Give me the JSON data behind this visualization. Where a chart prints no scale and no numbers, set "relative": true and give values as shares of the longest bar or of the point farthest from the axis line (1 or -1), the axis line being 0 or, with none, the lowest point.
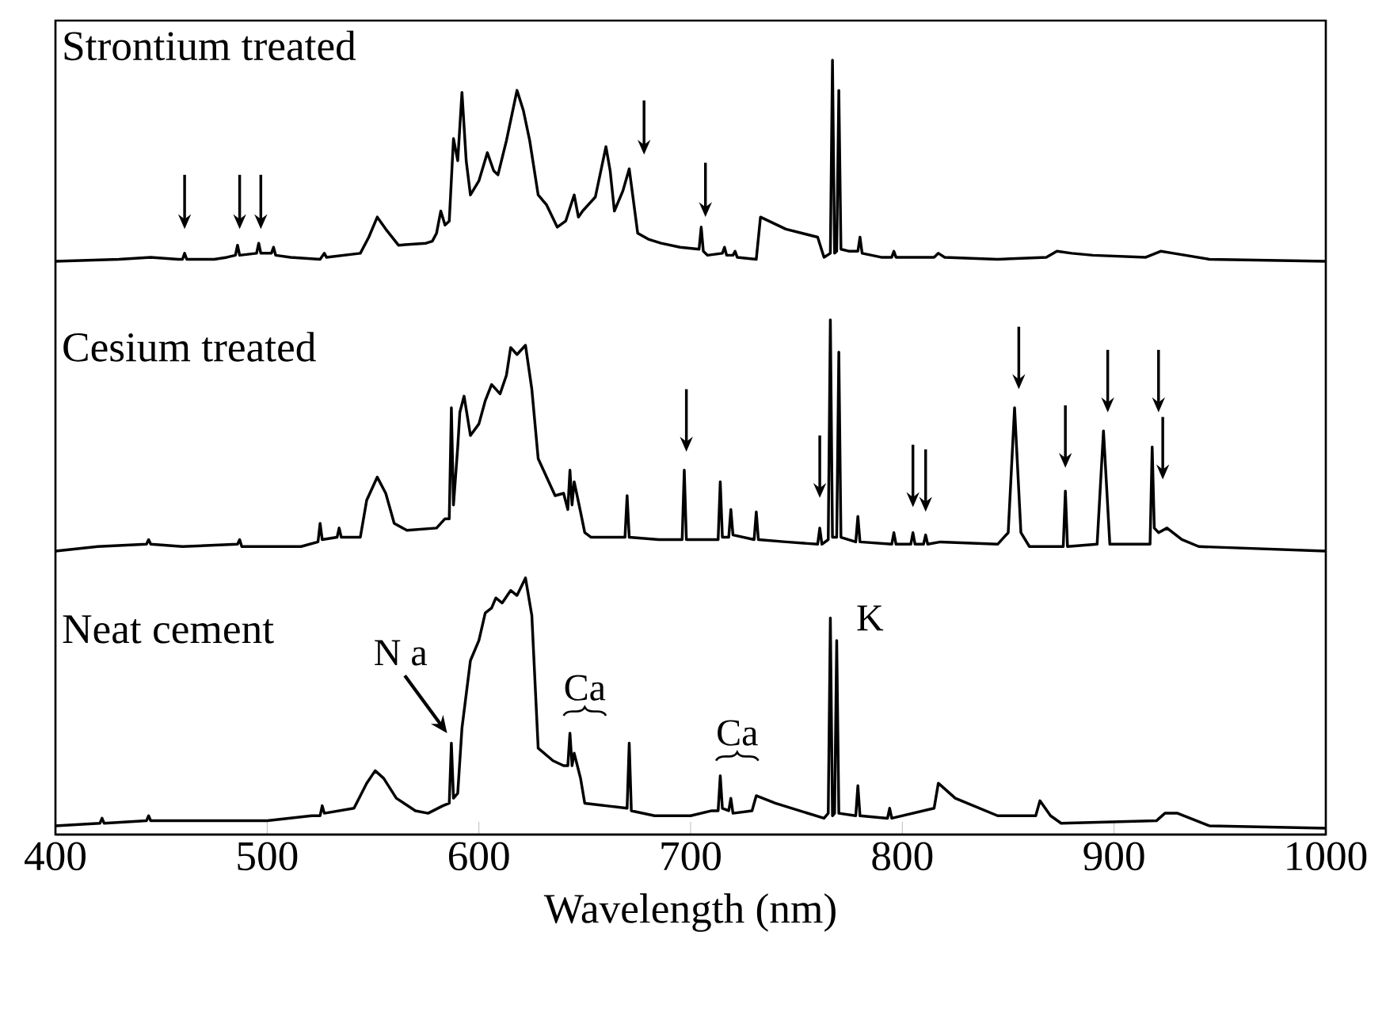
{
  "chart_data": [
    {
      "type": "line",
      "title": "Strontium treated",
      "relative": true,
      "xlim": [
        400,
        1000
      ],
      "xticks": [
        400,
        500,
        600,
        700,
        800,
        900,
        1000
      ],
      "tick_labels": false,
      "series": [
        {
          "color": "#000000",
          "x": [
            400,
            430,
            445,
            458,
            460,
            461,
            462,
            475,
            481,
            485,
            486,
            487,
            495,
            496,
            497,
            502,
            503,
            504,
            511,
            525,
            527,
            528,
            544,
            548,
            552,
            556,
            562,
            575,
            578,
            580,
            582,
            584,
            586,
            588,
            590,
            592,
            594,
            596,
            600,
            604,
            607,
            609,
            613,
            618,
            621,
            624,
            628,
            632,
            637,
            641,
            645,
            647,
            649,
            655,
            660,
            662,
            664,
            668,
            671,
            673,
            675,
            680,
            686,
            695,
            704,
            705,
            706,
            708,
            715,
            716,
            717,
            720,
            721,
            722,
            731,
            733,
            745,
            760,
            763,
            766,
            767,
            768,
            769,
            770,
            771,
            775,
            779,
            780,
            781,
            790,
            795,
            796,
            797,
            815,
            817,
            820,
            845,
            868,
            873,
            880,
            890,
            915,
            922,
            928,
            945,
            1000
          ],
          "values": [
            0,
            0.01,
            0.02,
            0.01,
            0.01,
            0.04,
            0.01,
            0.01,
            0.02,
            0.03,
            0.08,
            0.03,
            0.04,
            0.09,
            0.04,
            0.04,
            0.07,
            0.03,
            0.02,
            0.01,
            0.04,
            0.02,
            0.04,
            0.12,
            0.22,
            0.16,
            0.08,
            0.09,
            0.1,
            0.14,
            0.25,
            0.18,
            0.2,
            0.61,
            0.5,
            0.84,
            0.5,
            0.33,
            0.4,
            0.54,
            0.45,
            0.43,
            0.6,
            0.85,
            0.75,
            0.6,
            0.33,
            0.28,
            0.17,
            0.2,
            0.33,
            0.22,
            0.25,
            0.32,
            0.57,
            0.45,
            0.25,
            0.35,
            0.46,
            0.3,
            0.14,
            0.11,
            0.09,
            0.07,
            0.06,
            0.17,
            0.05,
            0.03,
            0.04,
            0.07,
            0.03,
            0.03,
            0.05,
            0.02,
            0.01,
            0.22,
            0.16,
            0.12,
            0.02,
            0.04,
            1.0,
            0.04,
            0.05,
            0.85,
            0.06,
            0.05,
            0.05,
            0.12,
            0.04,
            0.02,
            0.02,
            0.05,
            0.02,
            0.02,
            0.04,
            0.02,
            0.01,
            0.02,
            0.05,
            0.04,
            0.03,
            0.02,
            0.05,
            0.04,
            0.01,
            0
          ]
        }
      ]
    },
    {
      "type": "line",
      "title": "Cesium treated",
      "relative": true,
      "xlim": [
        400,
        1000
      ],
      "xticks": [
        400,
        500,
        600,
        700,
        800,
        900,
        1000
      ],
      "tick_labels": false,
      "series": [
        {
          "color": "#000000",
          "x": [
            400,
            420,
            443,
            444,
            445,
            460,
            486,
            487,
            488,
            516,
            524,
            525,
            526,
            533,
            534,
            535,
            544,
            547,
            552,
            556,
            560,
            566,
            580,
            584,
            586,
            587,
            588,
            590,
            591,
            593,
            596,
            600,
            603,
            606,
            610,
            613,
            615,
            618,
            622,
            625,
            628,
            632,
            636,
            640,
            642,
            643,
            644,
            645,
            648,
            650,
            653,
            669,
            670,
            671,
            685,
            696,
            697,
            698,
            713,
            714,
            715,
            718,
            719,
            720,
            730,
            731,
            732,
            745,
            760,
            761,
            762,
            765,
            766,
            767,
            769,
            770,
            771,
            778,
            779,
            780,
            795,
            796,
            797,
            804,
            805,
            806,
            810,
            811,
            812,
            818,
            845,
            850,
            853,
            856,
            860,
            876,
            877,
            878,
            892,
            895,
            898,
            917,
            918,
            919,
            921,
            925,
            932,
            940,
            1000
          ],
          "values": [
            0,
            0.02,
            0.03,
            0.05,
            0.03,
            0.02,
            0.03,
            0.05,
            0.02,
            0.02,
            0.04,
            0.12,
            0.05,
            0.06,
            0.1,
            0.06,
            0.06,
            0.22,
            0.32,
            0.25,
            0.12,
            0.09,
            0.1,
            0.14,
            0.14,
            0.62,
            0.2,
            0.45,
            0.6,
            0.67,
            0.5,
            0.55,
            0.65,
            0.72,
            0.68,
            0.76,
            0.88,
            0.85,
            0.89,
            0.7,
            0.4,
            0.32,
            0.24,
            0.25,
            0.18,
            0.35,
            0.2,
            0.3,
            0.17,
            0.08,
            0.06,
            0.06,
            0.24,
            0.06,
            0.05,
            0.05,
            0.35,
            0.05,
            0.05,
            0.3,
            0.06,
            0.06,
            0.18,
            0.07,
            0.05,
            0.17,
            0.05,
            0.04,
            0.03,
            0.1,
            0.03,
            0.05,
            1.0,
            0.06,
            0.06,
            0.86,
            0.06,
            0.04,
            0.15,
            0.04,
            0.03,
            0.08,
            0.03,
            0.03,
            0.08,
            0.03,
            0.03,
            0.07,
            0.03,
            0.04,
            0.03,
            0.08,
            0.62,
            0.08,
            0.02,
            0.02,
            0.26,
            0.02,
            0.03,
            0.52,
            0.03,
            0.03,
            0.45,
            0.1,
            0.08,
            0.1,
            0.05,
            0.02,
            0
          ]
        }
      ]
    },
    {
      "type": "line",
      "title": "Neat cement",
      "xlabel": "Wavelength (nm)",
      "relative": true,
      "xlim": [
        400,
        1000
      ],
      "xticks": [
        400,
        500,
        600,
        700,
        800,
        900,
        1000
      ],
      "tick_labels": "x",
      "annotations": [
        {
          "text": "N a",
          "x": 587,
          "y": 0.34
        },
        {
          "text": "Ca",
          "x": 643,
          "y": 0.38
        },
        {
          "text": "Ca",
          "x": 714,
          "y": 0.21
        },
        {
          "text": "K",
          "x": 767,
          "y": 0.84
        }
      ],
      "series": [
        {
          "color": "#000000",
          "x": [
            400,
            421,
            422,
            423,
            443,
            444,
            445,
            471,
            500,
            521,
            525,
            526,
            527,
            541,
            547,
            551,
            555,
            561,
            570,
            576,
            583,
            586,
            587,
            588,
            590,
            592,
            596,
            600,
            603,
            606,
            608,
            611,
            615,
            618,
            622,
            625,
            628,
            635,
            640,
            642,
            643,
            644,
            645,
            648,
            650,
            660,
            670,
            671,
            672,
            683,
            700,
            710,
            713,
            714,
            715,
            718,
            719,
            720,
            729,
            731,
            740,
            763,
            765,
            766,
            767,
            768,
            769,
            770,
            778,
            779,
            780,
            793,
            794,
            795,
            815,
            817,
            825,
            845,
            863,
            865,
            870,
            875,
            920,
            924,
            930,
            945,
            1000
          ],
          "values": [
            0.01,
            0.02,
            0.04,
            0.02,
            0.03,
            0.05,
            0.03,
            0.03,
            0.03,
            0.05,
            0.05,
            0.09,
            0.06,
            0.08,
            0.18,
            0.23,
            0.2,
            0.12,
            0.07,
            0.06,
            0.09,
            0.1,
            0.34,
            0.12,
            0.14,
            0.4,
            0.67,
            0.75,
            0.86,
            0.88,
            0.92,
            0.9,
            0.95,
            0.93,
            1.0,
            0.85,
            0.32,
            0.27,
            0.25,
            0.25,
            0.38,
            0.25,
            0.3,
            0.2,
            0.1,
            0.09,
            0.08,
            0.34,
            0.07,
            0.05,
            0.05,
            0.07,
            0.07,
            0.21,
            0.08,
            0.07,
            0.12,
            0.06,
            0.07,
            0.13,
            0.1,
            0.04,
            0.06,
            0.84,
            0.05,
            0.06,
            0.75,
            0.06,
            0.05,
            0.17,
            0.05,
            0.04,
            0.08,
            0.04,
            0.08,
            0.18,
            0.12,
            0.05,
            0.05,
            0.11,
            0.05,
            0.02,
            0.03,
            0.06,
            0.06,
            0.01,
            0
          ]
        }
      ]
    }
  ]
}
